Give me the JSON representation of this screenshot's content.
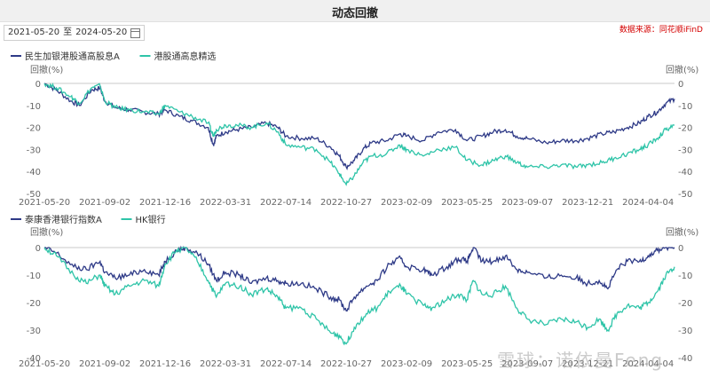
{
  "title": "动态回撤",
  "date_range": {
    "start": "2021-05-20",
    "separator": "至",
    "end": "2024-05-20"
  },
  "source": "数据来源：同花顺iFinD",
  "watermark": "雪球：诺依曼Feng",
  "colors": {
    "navy": "#2e3a87",
    "teal": "#2ec4a8"
  },
  "chart_data": [
    {
      "type": "line",
      "title": "",
      "ylabel": "回撤(%)",
      "ylim": [
        -50,
        0
      ],
      "yticks": [
        0,
        -10,
        -20,
        -30,
        -40,
        -50
      ],
      "x_ticks": [
        "2021-05-20",
        "2021-09-02",
        "2021-12-16",
        "2022-03-31",
        "2022-07-14",
        "2022-10-27",
        "2023-02-09",
        "2023-05-25",
        "2023-09-07",
        "2023-12-21",
        "2024-04-04"
      ],
      "grid": false,
      "legend": "top-left",
      "series": [
        {
          "name": "民生加银港股通高股息A",
          "color": "#2e3a87",
          "points": [
            [
              "2021-05-20",
              0
            ],
            [
              "2021-06-10",
              -3
            ],
            [
              "2021-07-05",
              -8
            ],
            [
              "2021-07-20",
              -10
            ],
            [
              "2021-08-10",
              -3
            ],
            [
              "2021-08-25",
              -2
            ],
            [
              "2021-09-02",
              -8
            ],
            [
              "2021-09-20",
              -11
            ],
            [
              "2021-10-15",
              -12
            ],
            [
              "2021-11-10",
              -13
            ],
            [
              "2021-12-05",
              -14
            ],
            [
              "2021-12-16",
              -12
            ],
            [
              "2022-01-10",
              -15
            ],
            [
              "2022-02-01",
              -17
            ],
            [
              "2022-03-01",
              -20
            ],
            [
              "2022-03-10",
              -28
            ],
            [
              "2022-03-15",
              -24
            ],
            [
              "2022-03-31",
              -22
            ],
            [
              "2022-04-20",
              -21
            ],
            [
              "2022-05-15",
              -20
            ],
            [
              "2022-06-10",
              -18
            ],
            [
              "2022-06-30",
              -20
            ],
            [
              "2022-07-14",
              -24
            ],
            [
              "2022-08-10",
              -25
            ],
            [
              "2022-09-05",
              -25
            ],
            [
              "2022-09-30",
              -29
            ],
            [
              "2022-10-15",
              -33
            ],
            [
              "2022-10-27",
              -38
            ],
            [
              "2022-11-10",
              -35
            ],
            [
              "2022-11-25",
              -30
            ],
            [
              "2022-12-10",
              -27
            ],
            [
              "2023-01-05",
              -26
            ],
            [
              "2023-01-28",
              -23
            ],
            [
              "2023-02-09",
              -24
            ],
            [
              "2023-03-10",
              -26
            ],
            [
              "2023-04-05",
              -22
            ],
            [
              "2023-05-05",
              -21
            ],
            [
              "2023-05-25",
              -26
            ],
            [
              "2023-06-20",
              -24
            ],
            [
              "2023-07-10",
              -22
            ],
            [
              "2023-07-31",
              -21
            ],
            [
              "2023-08-20",
              -24
            ],
            [
              "2023-09-07",
              -25
            ],
            [
              "2023-10-10",
              -27
            ],
            [
              "2023-11-05",
              -26
            ],
            [
              "2023-12-01",
              -26
            ],
            [
              "2023-12-21",
              -25
            ],
            [
              "2024-01-15",
              -23
            ],
            [
              "2024-02-05",
              -22
            ],
            [
              "2024-02-28",
              -20
            ],
            [
              "2024-03-20",
              -18
            ],
            [
              "2024-04-04",
              -15
            ],
            [
              "2024-04-20",
              -13
            ],
            [
              "2024-05-05",
              -9
            ],
            [
              "2024-05-20",
              -7
            ]
          ]
        },
        {
          "name": "港股通高息精选",
          "color": "#2ec4a8",
          "points": [
            [
              "2021-05-20",
              0
            ],
            [
              "2021-06-10",
              -2
            ],
            [
              "2021-07-05",
              -6
            ],
            [
              "2021-07-20",
              -9
            ],
            [
              "2021-08-10",
              -2
            ],
            [
              "2021-08-25",
              -1
            ],
            [
              "2021-09-02",
              -8
            ],
            [
              "2021-09-20",
              -11
            ],
            [
              "2021-10-15",
              -12
            ],
            [
              "2021-11-10",
              -13
            ],
            [
              "2021-12-05",
              -14
            ],
            [
              "2021-12-16",
              -10
            ],
            [
              "2022-01-10",
              -13
            ],
            [
              "2022-02-01",
              -15
            ],
            [
              "2022-03-01",
              -18
            ],
            [
              "2022-03-10",
              -24
            ],
            [
              "2022-03-15",
              -21
            ],
            [
              "2022-03-31",
              -19
            ],
            [
              "2022-04-20",
              -19
            ],
            [
              "2022-05-15",
              -20
            ],
            [
              "2022-06-10",
              -18
            ],
            [
              "2022-06-30",
              -22
            ],
            [
              "2022-07-14",
              -28
            ],
            [
              "2022-08-10",
              -29
            ],
            [
              "2022-09-05",
              -30
            ],
            [
              "2022-09-30",
              -36
            ],
            [
              "2022-10-15",
              -41
            ],
            [
              "2022-10-27",
              -46
            ],
            [
              "2022-11-10",
              -42
            ],
            [
              "2022-11-25",
              -36
            ],
            [
              "2022-12-10",
              -33
            ],
            [
              "2023-01-05",
              -32
            ],
            [
              "2023-01-28",
              -28
            ],
            [
              "2023-02-09",
              -30
            ],
            [
              "2023-03-10",
              -33
            ],
            [
              "2023-04-05",
              -30
            ],
            [
              "2023-05-05",
              -29
            ],
            [
              "2023-05-25",
              -35
            ],
            [
              "2023-06-20",
              -37
            ],
            [
              "2023-07-10",
              -35
            ],
            [
              "2023-07-31",
              -33
            ],
            [
              "2023-08-20",
              -36
            ],
            [
              "2023-09-07",
              -38
            ],
            [
              "2023-10-10",
              -38
            ],
            [
              "2023-11-05",
              -37
            ],
            [
              "2023-12-01",
              -38
            ],
            [
              "2023-12-21",
              -37
            ],
            [
              "2024-01-15",
              -36
            ],
            [
              "2024-02-05",
              -34
            ],
            [
              "2024-02-28",
              -32
            ],
            [
              "2024-03-20",
              -30
            ],
            [
              "2024-04-04",
              -28
            ],
            [
              "2024-04-20",
              -25
            ],
            [
              "2024-05-05",
              -21
            ],
            [
              "2024-05-20",
              -19
            ]
          ]
        }
      ]
    },
    {
      "type": "line",
      "title": "",
      "ylabel": "回撤(%)",
      "ylim": [
        -40,
        0
      ],
      "yticks": [
        0,
        -10,
        -20,
        -30,
        -40
      ],
      "x_ticks": [
        "2021-05-20",
        "2021-09-02",
        "2021-12-16",
        "2022-03-31",
        "2022-07-14",
        "2022-10-27",
        "2023-02-09",
        "2023-05-25",
        "2023-09-07",
        "2023-12-21",
        "2024-04-04"
      ],
      "grid": false,
      "legend": "top-left",
      "series": [
        {
          "name": "泰康香港银行指数A",
          "color": "#2e3a87",
          "points": [
            [
              "2021-05-20",
              0
            ],
            [
              "2021-06-10",
              -2
            ],
            [
              "2021-07-10",
              -7
            ],
            [
              "2021-08-01",
              -8
            ],
            [
              "2021-08-25",
              -5
            ],
            [
              "2021-09-02",
              -9
            ],
            [
              "2021-09-20",
              -11
            ],
            [
              "2021-10-15",
              -10
            ],
            [
              "2021-11-10",
              -8
            ],
            [
              "2021-12-05",
              -10
            ],
            [
              "2021-12-16",
              -5
            ],
            [
              "2022-01-05",
              -1
            ],
            [
              "2022-01-20",
              0
            ],
            [
              "2022-02-10",
              -2
            ],
            [
              "2022-03-01",
              -6
            ],
            [
              "2022-03-15",
              -12
            ],
            [
              "2022-03-31",
              -9
            ],
            [
              "2022-04-25",
              -10
            ],
            [
              "2022-05-15",
              -13
            ],
            [
              "2022-06-10",
              -11
            ],
            [
              "2022-06-30",
              -12
            ],
            [
              "2022-07-14",
              -13
            ],
            [
              "2022-08-10",
              -13
            ],
            [
              "2022-09-05",
              -15
            ],
            [
              "2022-09-30",
              -18
            ],
            [
              "2022-10-15",
              -19
            ],
            [
              "2022-10-27",
              -23
            ],
            [
              "2022-11-10",
              -18
            ],
            [
              "2022-12-01",
              -14
            ],
            [
              "2022-12-20",
              -12
            ],
            [
              "2023-01-10",
              -6
            ],
            [
              "2023-01-30",
              -4
            ],
            [
              "2023-02-09",
              -7
            ],
            [
              "2023-03-10",
              -8
            ],
            [
              "2023-03-25",
              -10
            ],
            [
              "2023-04-20",
              -7
            ],
            [
              "2023-05-10",
              -4
            ],
            [
              "2023-05-25",
              -5
            ],
            [
              "2023-06-05",
              0
            ],
            [
              "2023-06-20",
              -5
            ],
            [
              "2023-07-10",
              -5
            ],
            [
              "2023-07-31",
              -3
            ],
            [
              "2023-08-20",
              -8
            ],
            [
              "2023-09-07",
              -9
            ],
            [
              "2023-10-10",
              -11
            ],
            [
              "2023-11-05",
              -10
            ],
            [
              "2023-12-01",
              -11
            ],
            [
              "2023-12-21",
              -13
            ],
            [
              "2024-01-10",
              -12
            ],
            [
              "2024-01-25",
              -15
            ],
            [
              "2024-02-10",
              -8
            ],
            [
              "2024-02-28",
              -5
            ],
            [
              "2024-03-20",
              -5
            ],
            [
              "2024-04-04",
              -3
            ],
            [
              "2024-04-20",
              -1
            ],
            [
              "2024-05-05",
              0
            ],
            [
              "2024-05-20",
              0
            ]
          ]
        },
        {
          "name": "HK银行",
          "color": "#2ec4a8",
          "points": [
            [
              "2021-05-20",
              0
            ],
            [
              "2021-06-10",
              -3
            ],
            [
              "2021-07-10",
              -10
            ],
            [
              "2021-08-01",
              -13
            ],
            [
              "2021-08-25",
              -10
            ],
            [
              "2021-09-02",
              -14
            ],
            [
              "2021-09-20",
              -17
            ],
            [
              "2021-10-15",
              -14
            ],
            [
              "2021-11-10",
              -12
            ],
            [
              "2021-12-05",
              -14
            ],
            [
              "2021-12-16",
              -6
            ],
            [
              "2022-01-05",
              -1
            ],
            [
              "2022-01-20",
              0
            ],
            [
              "2022-02-10",
              -5
            ],
            [
              "2022-03-01",
              -12
            ],
            [
              "2022-03-15",
              -18
            ],
            [
              "2022-03-31",
              -13
            ],
            [
              "2022-04-25",
              -14
            ],
            [
              "2022-05-15",
              -17
            ],
            [
              "2022-06-10",
              -15
            ],
            [
              "2022-06-30",
              -18
            ],
            [
              "2022-07-14",
              -22
            ],
            [
              "2022-08-10",
              -22
            ],
            [
              "2022-09-05",
              -26
            ],
            [
              "2022-09-30",
              -31
            ],
            [
              "2022-10-15",
              -32
            ],
            [
              "2022-10-27",
              -35
            ],
            [
              "2022-11-10",
              -29
            ],
            [
              "2022-12-01",
              -24
            ],
            [
              "2022-12-20",
              -22
            ],
            [
              "2023-01-10",
              -16
            ],
            [
              "2023-01-30",
              -14
            ],
            [
              "2023-02-09",
              -17
            ],
            [
              "2023-03-10",
              -21
            ],
            [
              "2023-03-25",
              -22
            ],
            [
              "2023-04-20",
              -19
            ],
            [
              "2023-05-10",
              -17
            ],
            [
              "2023-05-25",
              -19
            ],
            [
              "2023-06-05",
              -12
            ],
            [
              "2023-06-20",
              -17
            ],
            [
              "2023-07-10",
              -17
            ],
            [
              "2023-07-31",
              -14
            ],
            [
              "2023-08-20",
              -22
            ],
            [
              "2023-09-07",
              -26
            ],
            [
              "2023-10-10",
              -28
            ],
            [
              "2023-11-05",
              -26
            ],
            [
              "2023-12-01",
              -27
            ],
            [
              "2023-12-21",
              -29
            ],
            [
              "2024-01-10",
              -26
            ],
            [
              "2024-01-25",
              -30
            ],
            [
              "2024-02-10",
              -24
            ],
            [
              "2024-02-28",
              -21
            ],
            [
              "2024-03-20",
              -22
            ],
            [
              "2024-04-04",
              -20
            ],
            [
              "2024-04-20",
              -16
            ],
            [
              "2024-05-05",
              -10
            ],
            [
              "2024-05-20",
              -7
            ]
          ]
        }
      ]
    }
  ]
}
